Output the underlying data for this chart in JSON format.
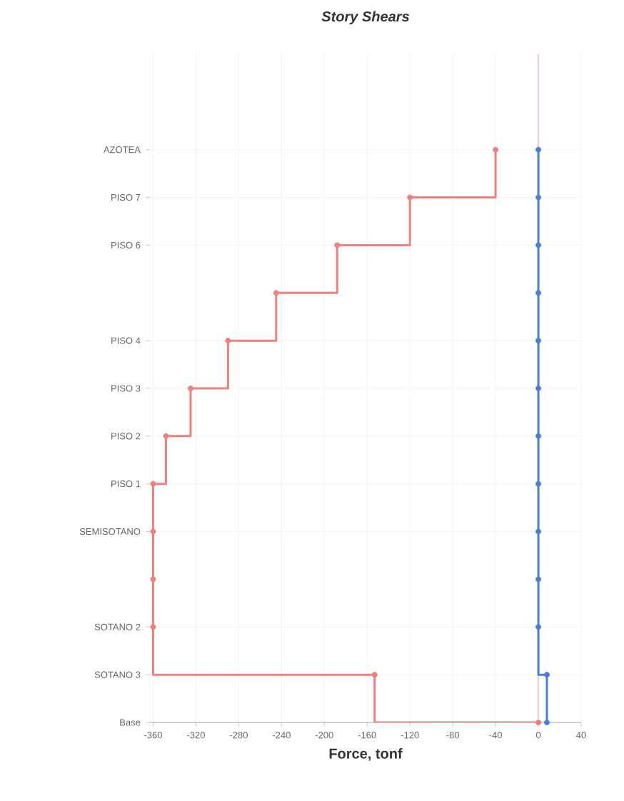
{
  "chart_data": {
    "type": "step",
    "orientation": "horizontal",
    "title": "Story Shears",
    "xlabel": "Force, tonf",
    "categories": [
      "AZOTEA",
      "PISO 7",
      "PISO 6",
      null,
      "PISO 4",
      "PISO 3",
      "PISO 2",
      "PISO 1",
      "SEMISOTANO",
      null,
      "SOTANO 2",
      "SOTANO 3",
      "Base"
    ],
    "series": [
      {
        "color": "#f08080",
        "values": [
          -40,
          -120,
          -188,
          -245,
          -290,
          -325,
          -348,
          -360,
          -360,
          -360,
          -360,
          -153,
          0
        ]
      },
      {
        "color": "#4a7fe0",
        "values": [
          0,
          0,
          0,
          0,
          0,
          0,
          0,
          0,
          0,
          0,
          0,
          8,
          8
        ]
      }
    ],
    "xlim": [
      -363,
      40
    ],
    "xticks": [
      -360,
      -320,
      -280,
      -240,
      -200,
      -160,
      -120,
      -80,
      -40,
      0,
      40
    ],
    "ref_lines": [
      {
        "axis": "x",
        "value": 0,
        "color": "#f0a0a0"
      }
    ],
    "grid": true,
    "marker": "circle"
  }
}
